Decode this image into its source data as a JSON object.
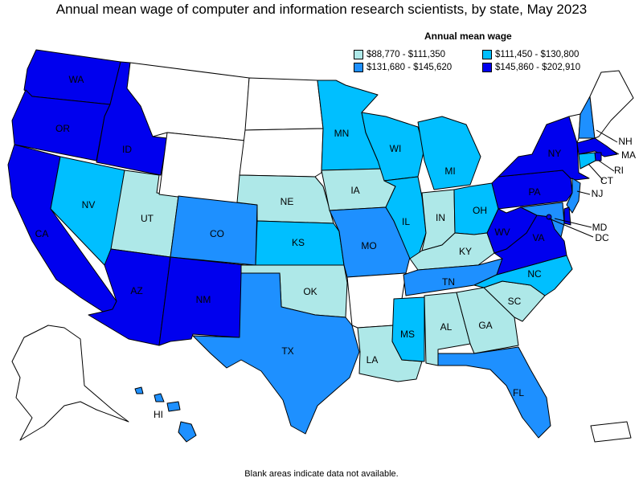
{
  "title": "Annual mean wage of computer and information research scientists, by state, May 2023",
  "legend": {
    "title": "Annual mean wage",
    "bins": [
      {
        "label": "$88,770 - $111,350",
        "color": "#aee8e8"
      },
      {
        "label": "$111,450 - $130,800",
        "color": "#00bfff"
      },
      {
        "label": "$131,680 - $145,620",
        "color": "#1e90ff"
      },
      {
        "label": "$145,860 - $202,910",
        "color": "#0000ee"
      }
    ]
  },
  "no_data_color": "#ffffff",
  "footnote": "Blank areas indicate data not available.",
  "states": {
    "WA": {
      "label": "WA",
      "bin": 3
    },
    "OR": {
      "label": "OR",
      "bin": 3
    },
    "CA": {
      "label": "CA",
      "bin": 3
    },
    "ID": {
      "label": "ID",
      "bin": 3
    },
    "NV": {
      "label": "NV",
      "bin": 1
    },
    "UT": {
      "label": "UT",
      "bin": 0
    },
    "AZ": {
      "label": "AZ",
      "bin": 3
    },
    "MT": {
      "label": "",
      "bin": null
    },
    "WY": {
      "label": "",
      "bin": null
    },
    "CO": {
      "label": "CO",
      "bin": 2
    },
    "NM": {
      "label": "NM",
      "bin": 3
    },
    "ND": {
      "label": "",
      "bin": null
    },
    "SD": {
      "label": "",
      "bin": null
    },
    "NE": {
      "label": "NE",
      "bin": 0
    },
    "KS": {
      "label": "KS",
      "bin": 1
    },
    "OK": {
      "label": "OK",
      "bin": 0
    },
    "TX": {
      "label": "TX",
      "bin": 2
    },
    "MN": {
      "label": "MN",
      "bin": 1
    },
    "IA": {
      "label": "IA",
      "bin": 0
    },
    "MO": {
      "label": "MO",
      "bin": 2
    },
    "AR": {
      "label": "",
      "bin": null
    },
    "LA": {
      "label": "LA",
      "bin": 0
    },
    "WI": {
      "label": "WI",
      "bin": 1
    },
    "IL": {
      "label": "IL",
      "bin": 1
    },
    "MI": {
      "label": "MI",
      "bin": 1
    },
    "IN": {
      "label": "IN",
      "bin": 0
    },
    "OH": {
      "label": "OH",
      "bin": 1
    },
    "KY": {
      "label": "KY",
      "bin": 0
    },
    "TN": {
      "label": "TN",
      "bin": 2
    },
    "MS": {
      "label": "MS",
      "bin": 1
    },
    "AL": {
      "label": "AL",
      "bin": 0
    },
    "GA": {
      "label": "GA",
      "bin": 0
    },
    "FL": {
      "label": "FL",
      "bin": 2
    },
    "SC": {
      "label": "SC",
      "bin": 0
    },
    "NC": {
      "label": "NC",
      "bin": 1
    },
    "VA": {
      "label": "VA",
      "bin": 3
    },
    "WV": {
      "label": "WV",
      "bin": 3
    },
    "PA": {
      "label": "PA",
      "bin": 3
    },
    "NY": {
      "label": "NY",
      "bin": 3
    },
    "VT": {
      "label": "",
      "bin": null
    },
    "ME": {
      "label": "",
      "bin": null
    },
    "NH": {
      "label": "NH",
      "bin": 2
    },
    "MA": {
      "label": "MA",
      "bin": 3
    },
    "RI": {
      "label": "RI",
      "bin": 3
    },
    "CT": {
      "label": "CT",
      "bin": 1
    },
    "NJ": {
      "label": "NJ",
      "bin": 2
    },
    "DE": {
      "label": "",
      "bin": 3
    },
    "MD": {
      "label": "MD",
      "bin": 2
    },
    "DC": {
      "label": "DC",
      "bin": 3
    },
    "AK": {
      "label": "",
      "bin": null
    },
    "HI": {
      "label": "HI",
      "bin": 2
    },
    "PR": {
      "label": "",
      "bin": null
    }
  }
}
